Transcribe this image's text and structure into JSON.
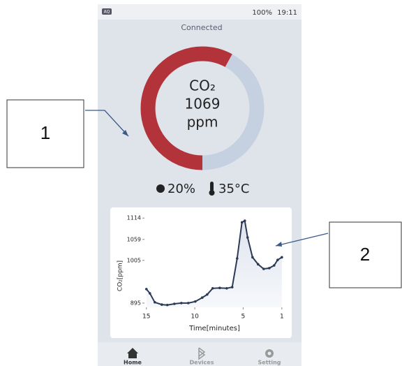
{
  "status_bar": {
    "badge": "AQ",
    "battery": "100%",
    "time": "19:11"
  },
  "status": "Connected",
  "gauge": {
    "label": "CO₂",
    "value": 1069,
    "unit": "ppm",
    "arc_percent": 58
  },
  "readings": {
    "humidity": "20%",
    "temperature": "35°C"
  },
  "chart_data": {
    "type": "line",
    "y_label": "CO₂[ppm]",
    "x_label": "Time[minutes]",
    "x": [
      15,
      14.64,
      14.13,
      13.41,
      12.84,
      12.11,
      11.39,
      10.67,
      9.95,
      9.23,
      8.72,
      8.15,
      7.42,
      6.7,
      6.13,
      5.62,
      5.12,
      4.83,
      4.54,
      4.03,
      3.46,
      2.88,
      2.3,
      1.8,
      1.44,
      1
    ],
    "series": [
      {
        "color": "#2b3a55",
        "values": [
          931,
          920,
          897,
          891,
          890,
          893,
          895,
          895,
          899,
          909,
          917,
          933,
          934,
          933,
          936,
          1010,
          1103,
          1107,
          1064,
          1013,
          995,
          983,
          985,
          992,
          1006,
          1013
        ]
      }
    ],
    "xlim": [
      15.2,
      0.7
    ],
    "ylim": [
      884,
      1118
    ],
    "xticks": [
      15,
      10,
      5,
      1
    ],
    "yticks": [
      895,
      1005,
      1059,
      1114
    ]
  },
  "nav": [
    {
      "label": "Home"
    },
    {
      "label": "Devices"
    },
    {
      "label": "Setting"
    }
  ],
  "callouts": [
    "1",
    "2"
  ]
}
